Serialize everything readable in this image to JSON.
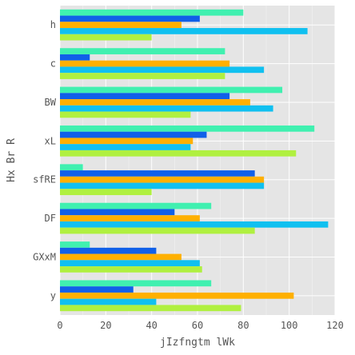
{
  "chart_data": {
    "type": "bar",
    "orientation": "horizontal",
    "categories": [
      "h",
      "c",
      "BW",
      "xL",
      "sfRE",
      "DF",
      "GXxM",
      "y"
    ],
    "series": [
      {
        "color": "#40f0b0",
        "values": [
          80,
          72,
          97,
          111,
          10,
          66,
          13,
          66
        ]
      },
      {
        "color": "#1060e8",
        "values": [
          61,
          13,
          74,
          64,
          85,
          50,
          42,
          32
        ]
      },
      {
        "color": "#ffb000",
        "values": [
          53,
          74,
          83,
          58,
          89,
          61,
          53,
          102
        ]
      },
      {
        "color": "#10c0f0",
        "values": [
          108,
          89,
          93,
          57,
          89,
          117,
          61,
          42
        ]
      },
      {
        "color": "#b0f040",
        "values": [
          40,
          72,
          57,
          103,
          40,
          85,
          62,
          79
        ]
      }
    ],
    "xlabel": "jIzfngtm lWk",
    "ylabel": "Hx Br R",
    "xlim": [
      0,
      120
    ],
    "xticks": [
      0,
      20,
      40,
      60,
      80,
      100,
      120
    ],
    "grid": true,
    "background": "#e5e5e5"
  }
}
